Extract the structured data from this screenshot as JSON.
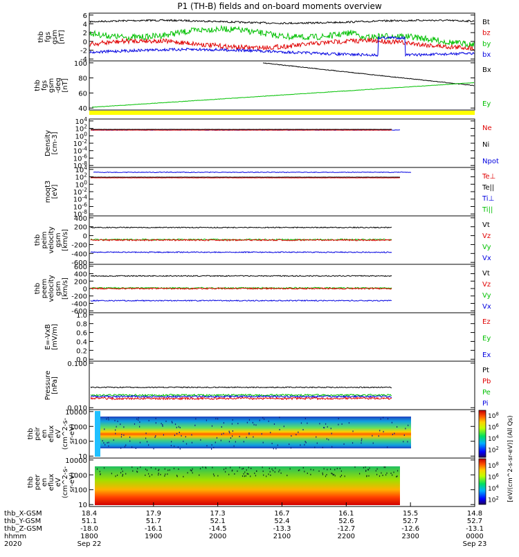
{
  "title": "P1 (TH-B) fields and on-board moments overview",
  "colors": {
    "black": "#000000",
    "red": "#e00000",
    "green": "#00c000",
    "blue": "#0000e0",
    "yellow": "#ffff00",
    "cyan": "#20c0ff"
  },
  "colorbar": {
    "label": "[eV/(cm^2-s-sr-eV)] (All Qs)",
    "ticks_top": [
      "10^8",
      "10^6",
      "10^4",
      "10^2"
    ],
    "ticks_bottom": [
      "10^8",
      "10^6",
      "10^4",
      "10^2"
    ]
  },
  "x_axis": {
    "row_labels": [
      "thb_X-GSM",
      "thb_Y-GSM",
      "thb_Z-GSM",
      "hhmm",
      "2020"
    ],
    "columns": [
      [
        "18.4",
        "51.1",
        "-18.0",
        "1800",
        "Sep 22"
      ],
      [
        "17.9",
        "51.7",
        "-16.1",
        "1900",
        ""
      ],
      [
        "17.3",
        "52.1",
        "-14.5",
        "2000",
        ""
      ],
      [
        "16.7",
        "52.4",
        "-13.3",
        "2100",
        ""
      ],
      [
        "16.1",
        "52.6",
        "-12.7",
        "2200",
        ""
      ],
      [
        "15.5",
        "52.7",
        "-12.6",
        "2300",
        ""
      ],
      [
        "14.8",
        "52.7",
        "-13.1",
        "0000",
        "Sep 23"
      ]
    ]
  },
  "panels": [
    {
      "ylabel": [
        "thb",
        "fgs",
        "gsm",
        "[nT]"
      ],
      "ticks": [
        "6",
        "4",
        "2",
        "0",
        "-2",
        "-4"
      ],
      "legend": [
        {
          "t": "Bt",
          "c": "black"
        },
        {
          "t": "bz",
          "c": "red"
        },
        {
          "t": "by",
          "c": "green"
        },
        {
          "t": "bx",
          "c": "blue"
        }
      ]
    },
    {
      "ylabel": [
        "thb",
        "fgs",
        "gsm",
        "-deg",
        "[nT]"
      ],
      "ticks": [
        "100",
        "80",
        "60",
        "40"
      ],
      "legend": [
        {
          "t": "Bx",
          "c": "black"
        },
        {
          "t": "Ey",
          "c": "green"
        }
      ]
    },
    {
      "ylabel": [
        "Density",
        "[cm-3]"
      ],
      "ticks": [
        "10^4",
        "10^2",
        "10^0",
        "10^-2",
        "10^-4",
        "10^-6",
        "10^-8"
      ],
      "legend": [
        {
          "t": "Ne",
          "c": "red"
        },
        {
          "t": "Ni",
          "c": "black"
        },
        {
          "t": "Npot",
          "c": "blue"
        }
      ]
    },
    {
      "ylabel": [
        "moqt3",
        "[eV]"
      ],
      "ticks": [
        "10^4",
        "10^2",
        "10^0",
        "10^-2",
        "10^-4",
        "10^-6",
        "10^-8"
      ],
      "legend": [
        {
          "t": "Te⊥",
          "c": "red"
        },
        {
          "t": "Te||",
          "c": "black"
        },
        {
          "t": "Ti⊥",
          "c": "blue"
        },
        {
          "t": "Ti||",
          "c": "green"
        }
      ]
    },
    {
      "ylabel": [
        "thb",
        "peim",
        "velocity",
        "gsm",
        "[km/s]"
      ],
      "ticks": [
        "400",
        "200",
        "0",
        "-200",
        "-400",
        "-600"
      ],
      "legend": [
        {
          "t": "Vt",
          "c": "black"
        },
        {
          "t": "Vz",
          "c": "red"
        },
        {
          "t": "Vy",
          "c": "green"
        },
        {
          "t": "Vx",
          "c": "blue"
        }
      ]
    },
    {
      "ylabel": [
        "thb",
        "peem",
        "velocity",
        "gsm",
        "[km/s]"
      ],
      "ticks": [
        "600",
        "400",
        "200",
        "0",
        "-200",
        "-400",
        "-600"
      ],
      "legend": [
        {
          "t": "Vt",
          "c": "black"
        },
        {
          "t": "Vz",
          "c": "red"
        },
        {
          "t": "Vy",
          "c": "green"
        },
        {
          "t": "Vx",
          "c": "blue"
        }
      ]
    },
    {
      "ylabel": [
        "E=-VxB",
        "[mV/m]"
      ],
      "ticks": [
        "1.0",
        "0.8",
        "0.6",
        "0.4",
        "0.2",
        "0.0"
      ],
      "legend": [
        {
          "t": "Ez",
          "c": "red"
        },
        {
          "t": "Ey",
          "c": "green"
        },
        {
          "t": "Ex",
          "c": "blue"
        }
      ]
    },
    {
      "ylabel": [
        "Pressure",
        "[nPa]"
      ],
      "ticks": [
        "0.100",
        "0.010"
      ],
      "legend": [
        {
          "t": "Pt",
          "c": "black"
        },
        {
          "t": "Pb",
          "c": "red"
        },
        {
          "t": "Pe",
          "c": "green"
        },
        {
          "t": "Pi",
          "c": "blue"
        }
      ]
    },
    {
      "ylabel": [
        "thb",
        "peir",
        "en",
        "eflux",
        "eV",
        "(cm^2-s-",
        "sr-eV)"
      ],
      "ticks": [
        "10000",
        "1000",
        "100",
        "10"
      ],
      "legend": []
    },
    {
      "ylabel": [
        "thb",
        "peer",
        "en",
        "eflux",
        "eV",
        "(cm^2-s-",
        "sr-eV)"
      ],
      "ticks": [
        "10000",
        "1000",
        "100",
        "10"
      ],
      "legend": []
    }
  ]
}
